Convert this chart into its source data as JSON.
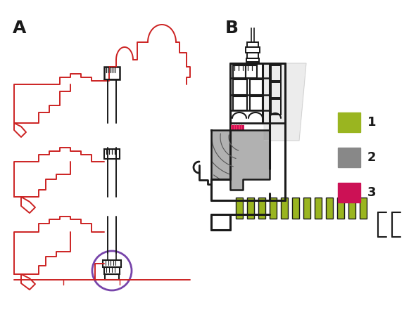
{
  "bg_color": "#ffffff",
  "red": "#cc2222",
  "black": "#1a1a1a",
  "gray": "#888888",
  "olive": "#9ab520",
  "pink": "#cc1155",
  "purple": "#7744aa",
  "legend_items": [
    {
      "label": "1",
      "color": "#9ab520"
    },
    {
      "label": "2",
      "color": "#888888"
    },
    {
      "label": "3",
      "color": "#cc1155"
    }
  ]
}
